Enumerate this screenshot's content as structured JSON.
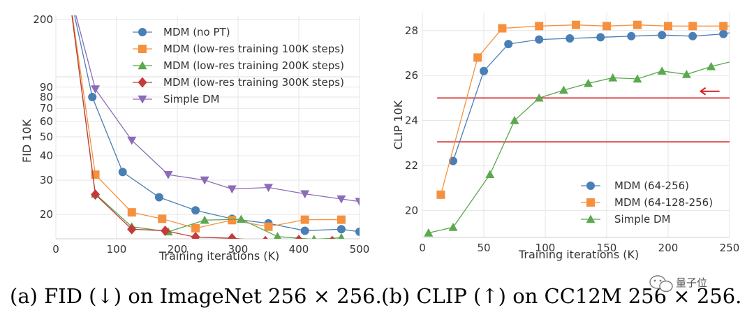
{
  "chart_data": [
    {
      "type": "line",
      "ylabel": "FID 10K",
      "xlabel": "Training iterations (K)",
      "xlim": [
        0,
        500
      ],
      "xticks": [
        "0",
        "100",
        "200",
        "300",
        "400",
        "500"
      ],
      "yscale": "log",
      "ylim": [
        15,
        200
      ],
      "yticks": [
        "20",
        "30",
        "40",
        "50",
        "60",
        "70",
        "80",
        "90",
        "200"
      ],
      "grid": true,
      "legend_position": "top-right",
      "series": [
        {
          "name": "MDM (no PT)",
          "color": "#4a7fb5",
          "marker": "circle",
          "x": [
            20,
            60,
            110,
            170,
            230,
            290,
            350,
            410,
            470,
            500
          ],
          "y": [
            300,
            80,
            33,
            24.5,
            21,
            19,
            18,
            16.5,
            16.8,
            16.3
          ]
        },
        {
          "name": "MDM (low-res training 100K steps)",
          "color": "#f5913e",
          "marker": "square",
          "x": [
            20,
            65,
            125,
            175,
            230,
            290,
            350,
            410,
            470
          ],
          "y": [
            300,
            32,
            20.5,
            19,
            17,
            18.7,
            17.3,
            18.8,
            18.8
          ]
        },
        {
          "name": "MDM (low-res training 200K steps)",
          "color": "#5ba84f",
          "marker": "triangle-up",
          "x": [
            20,
            65,
            125,
            185,
            245,
            305,
            365,
            425,
            470
          ],
          "y": [
            300,
            25.5,
            17.3,
            16.3,
            18.7,
            18.9,
            15.4,
            14.9,
            15.2
          ]
        },
        {
          "name": "MDM (low-res training 300K steps)",
          "color": "#c43b3b",
          "marker": "diamond",
          "x": [
            20,
            65,
            125,
            180,
            230,
            290,
            345,
            400,
            455
          ],
          "y": [
            300,
            25.3,
            16.8,
            16.5,
            15.3,
            15.1,
            14.6,
            14.8,
            14.6
          ]
        },
        {
          "name": "Simple DM",
          "color": "#8c6bb8",
          "marker": "triangle-down",
          "x": [
            20,
            65,
            125,
            185,
            245,
            290,
            350,
            410,
            470,
            500
          ],
          "y": [
            300,
            88,
            48,
            32,
            30,
            27,
            27.5,
            25.5,
            24,
            23.3
          ]
        }
      ]
    },
    {
      "type": "line",
      "ylabel": "CLIP 10K",
      "xlabel": "Training iterations (K)",
      "xlim": [
        0,
        250
      ],
      "xticks": [
        "0",
        "50",
        "100",
        "150",
        "200",
        "250"
      ],
      "ylim": [
        18.8,
        28.8
      ],
      "yticks": [
        "20",
        "22",
        "24",
        "26",
        "28"
      ],
      "grid": true,
      "legend_position": "lower-right",
      "hlines": [
        {
          "y": 25.0,
          "color": "#d62020"
        },
        {
          "y": 23.05,
          "color": "#d62020"
        }
      ],
      "arrow": {
        "x": 235,
        "y": 25.3,
        "direction": "left",
        "color": "#d62020"
      },
      "series": [
        {
          "name": "MDM (64-256)",
          "color": "#4a7fb5",
          "marker": "circle",
          "x": [
            25,
            50,
            70,
            95,
            120,
            145,
            170,
            195,
            220,
            245,
            250
          ],
          "y": [
            22.2,
            26.2,
            27.4,
            27.6,
            27.65,
            27.7,
            27.75,
            27.8,
            27.75,
            27.85,
            27.9
          ]
        },
        {
          "name": "MDM (64-128-256)",
          "color": "#f5913e",
          "marker": "square",
          "x": [
            15,
            45,
            65,
            95,
            125,
            150,
            175,
            200,
            220,
            245,
            250
          ],
          "y": [
            20.7,
            26.8,
            28.1,
            28.2,
            28.25,
            28.2,
            28.25,
            28.2,
            28.2,
            28.2,
            28.2
          ]
        },
        {
          "name": "Simple DM",
          "color": "#5ba84f",
          "marker": "triangle-up",
          "x": [
            5,
            25,
            55,
            75,
            95,
            115,
            135,
            155,
            175,
            195,
            215,
            235,
            250
          ],
          "y": [
            19.0,
            19.25,
            21.6,
            24.0,
            25.0,
            25.35,
            25.65,
            25.9,
            25.85,
            26.2,
            26.05,
            26.4,
            26.6
          ]
        }
      ]
    }
  ],
  "captions": {
    "a": "(a) FID (↓) on ImageNet 256 × 256.",
    "b": "(b) CLIP (↑) on CC12M 256 × 256."
  },
  "watermark": "量子位"
}
